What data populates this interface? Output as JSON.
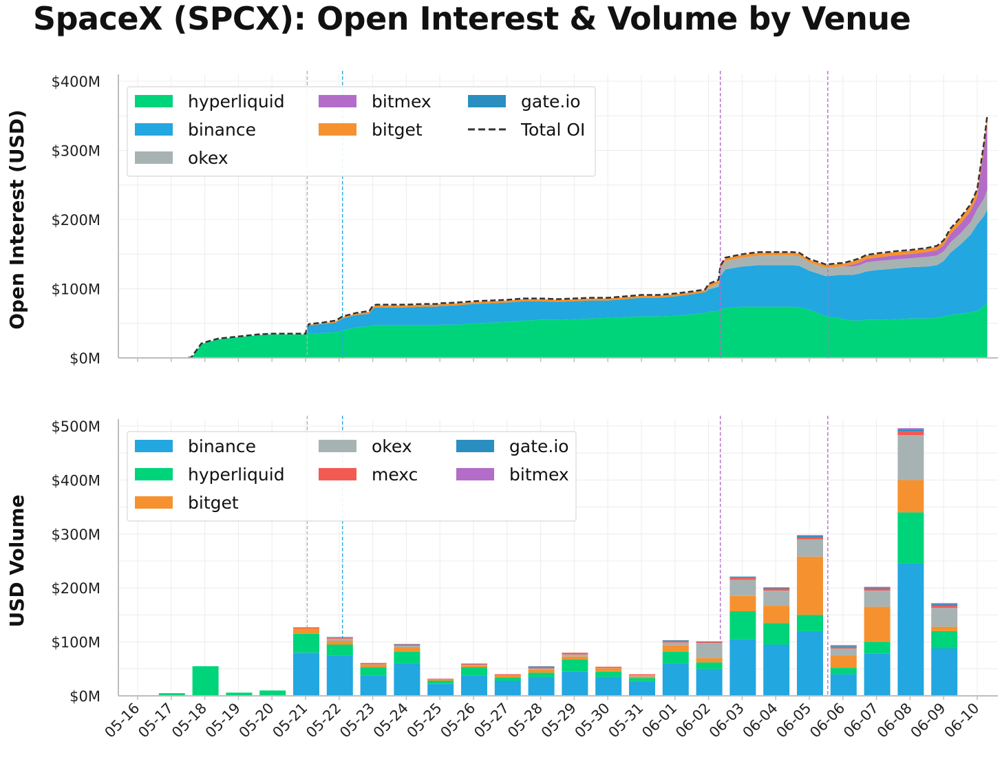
{
  "title": "SpaceX (SPCX): Open Interest & Volume by Venue",
  "colors": {
    "hyperliquid": "#00d47a",
    "binance": "#22a7e0",
    "okex": "#a7b3b3",
    "bitmex": "#b36cc8",
    "bitget": "#f5922f",
    "gate.io": "#2a8fc0",
    "mexc": "#f25a52",
    "total": "#333333"
  },
  "x_ticks": [
    "05-16",
    "05-17",
    "05-18",
    "05-19",
    "05-20",
    "05-21",
    "05-22",
    "05-23",
    "05-24",
    "05-25",
    "05-26",
    "05-27",
    "05-28",
    "05-29",
    "05-30",
    "05-31",
    "06-01",
    "06-02",
    "06-03",
    "06-04",
    "06-05",
    "06-06",
    "06-07",
    "06-08",
    "06-09",
    "06-10"
  ],
  "chart_data": [
    {
      "type": "area",
      "stacked": true,
      "ylabel": "Open Interest (USD)",
      "ylim": [
        0,
        400
      ],
      "y_unit": "$M",
      "y_ticks": [
        "$0M",
        "$100M",
        "$200M",
        "$300M",
        "$400M"
      ],
      "x_range": [
        "05-16",
        "06-10"
      ],
      "grid": true,
      "legend_position": "top-left",
      "vlines": [
        {
          "x": "05-21",
          "offset_days": 0.05,
          "color": "#a7b3b3"
        },
        {
          "x": "05-22",
          "offset_days": 0.1,
          "color": "#22a7e0"
        },
        {
          "x": "06-02",
          "offset_days": 0.35,
          "color": "#b36cc8"
        },
        {
          "x": "06-05",
          "offset_days": 0.55,
          "color": "#b36cc8"
        }
      ],
      "legend": [
        {
          "label": "hyperliquid",
          "key": "hyperliquid",
          "kind": "patch"
        },
        {
          "label": "binance",
          "key": "binance",
          "kind": "patch"
        },
        {
          "label": "okex",
          "key": "okex",
          "kind": "patch"
        },
        {
          "label": "bitmex",
          "key": "bitmex",
          "kind": "patch"
        },
        {
          "label": "bitget",
          "key": "bitget",
          "kind": "patch"
        },
        {
          "label": "gate.io",
          "key": "gate.io",
          "kind": "patch"
        },
        {
          "label": "Total OI",
          "key": "total",
          "kind": "dash"
        }
      ],
      "x": [
        1.6,
        1.9,
        2.1,
        2.4,
        2.8,
        3.2,
        3.6,
        4.0,
        4.5,
        5.0,
        5.05,
        5.1,
        5.5,
        5.9,
        6.0,
        6.1,
        6.5,
        6.9,
        7.0,
        7.1,
        7.5,
        8.0,
        8.5,
        8.9,
        9.0,
        9.5,
        10.0,
        10.5,
        11.0,
        11.5,
        12.0,
        12.5,
        13.0,
        13.5,
        14.0,
        14.5,
        15.0,
        15.5,
        16.0,
        16.5,
        16.9,
        17.0,
        17.3,
        17.35,
        17.5,
        18.0,
        18.5,
        19.0,
        19.5,
        19.7,
        20.0,
        20.5,
        20.9,
        21.0,
        21.3,
        21.5,
        21.7,
        22.0,
        22.5,
        23.0,
        23.5,
        23.8,
        24.0,
        24.2,
        24.5,
        24.8,
        25.0,
        25.2,
        25.3
      ],
      "series": [
        {
          "name": "hyperliquid",
          "key": "hyperliquid",
          "values": [
            0,
            20,
            23,
            27,
            29,
            31,
            33,
            34,
            34,
            34,
            35,
            35,
            36,
            37,
            38,
            40,
            44,
            46,
            47,
            47,
            47,
            47,
            47,
            47,
            48,
            48,
            50,
            51,
            52,
            54,
            55,
            55,
            56,
            57,
            58,
            59,
            60,
            60,
            61,
            63,
            65,
            67,
            68,
            70,
            72,
            74,
            74,
            74,
            74,
            73,
            70,
            60,
            58,
            56,
            54,
            54,
            55,
            55,
            56,
            57,
            57,
            58,
            60,
            62,
            64,
            66,
            68,
            75,
            80
          ]
        },
        {
          "name": "binance",
          "key": "binance",
          "values": [
            0,
            0,
            0,
            0,
            0,
            0,
            0,
            0,
            0,
            0,
            8,
            12,
            13,
            14,
            16,
            17,
            18,
            18,
            24,
            26,
            26,
            26,
            27,
            27,
            27,
            28,
            28,
            28,
            28,
            28,
            27,
            26,
            26,
            26,
            25,
            26,
            27,
            27,
            28,
            29,
            30,
            32,
            35,
            48,
            56,
            58,
            60,
            60,
            60,
            60,
            56,
            58,
            62,
            64,
            66,
            68,
            70,
            72,
            73,
            74,
            75,
            76,
            80,
            90,
            100,
            112,
            125,
            130,
            135
          ]
        },
        {
          "name": "okex",
          "key": "okex",
          "values": [
            0,
            0,
            0,
            0,
            0,
            0,
            0,
            0,
            0,
            0,
            0,
            0,
            0,
            0,
            0,
            0,
            0,
            0,
            0,
            0,
            0,
            0,
            0,
            0,
            0,
            0,
            0,
            0,
            0,
            0,
            0,
            0,
            0,
            0,
            0,
            0,
            0,
            0,
            0,
            0,
            0,
            3,
            5,
            10,
            12,
            13,
            14,
            14,
            14,
            14,
            12,
            12,
            12,
            12,
            12,
            12,
            13,
            13,
            13,
            13,
            14,
            14,
            14,
            15,
            16,
            18,
            22,
            25,
            28
          ]
        },
        {
          "name": "bitmex",
          "key": "bitmex",
          "values": [
            0,
            0,
            0,
            0,
            0,
            0,
            0,
            0,
            0,
            0,
            0,
            0,
            0,
            0,
            0,
            0,
            0,
            0,
            0,
            0,
            0,
            0,
            0,
            0,
            0,
            0,
            0,
            0,
            0,
            0,
            0,
            0,
            0,
            0,
            0,
            0,
            0,
            0,
            0,
            0,
            0,
            0,
            0,
            0,
            0,
            0,
            0,
            0,
            0,
            0,
            0,
            0,
            0,
            0,
            3,
            4,
            5,
            5,
            6,
            6,
            7,
            8,
            9,
            12,
            14,
            16,
            18,
            70,
            95
          ]
        },
        {
          "name": "bitget",
          "key": "bitget",
          "values": [
            0,
            0,
            0,
            0,
            0,
            0,
            0,
            0,
            0,
            0,
            1,
            1,
            1,
            2,
            2,
            2,
            2,
            3,
            3,
            3,
            3,
            3,
            3,
            3,
            3,
            3,
            3,
            3,
            3,
            3,
            3,
            3,
            3,
            3,
            3,
            3,
            3,
            3,
            3,
            3,
            3,
            4,
            4,
            4,
            4,
            4,
            4,
            4,
            4,
            4,
            4,
            4,
            4,
            4,
            5,
            5,
            5,
            5,
            5,
            5,
            5,
            5,
            6,
            7,
            8,
            9,
            10,
            10,
            12
          ]
        },
        {
          "name": "gate.io",
          "key": "gate.io",
          "values": [
            0,
            0,
            0,
            0,
            0,
            0,
            0,
            0,
            0,
            0,
            0,
            0,
            0,
            0,
            0,
            0,
            0,
            0,
            0,
            0,
            0,
            0,
            0,
            0,
            0,
            0,
            0,
            0,
            0,
            0,
            0,
            0,
            0,
            0,
            0,
            0,
            0,
            0,
            0,
            0,
            0,
            0,
            0,
            0,
            0,
            0,
            0,
            0,
            0,
            0,
            0,
            0,
            0,
            0,
            0,
            0,
            0,
            0,
            0,
            0,
            0,
            0,
            0,
            0,
            0,
            0,
            0,
            0,
            0
          ]
        }
      ]
    },
    {
      "type": "bar",
      "stacked": true,
      "ylabel": "USD Volume",
      "ylim": [
        0,
        500
      ],
      "y_unit": "$M",
      "y_ticks": [
        "$0M",
        "$100M",
        "$200M",
        "$300M",
        "$400M",
        "$500M"
      ],
      "grid": true,
      "legend_position": "top-left",
      "legend": [
        {
          "label": "binance",
          "key": "binance",
          "kind": "patch"
        },
        {
          "label": "hyperliquid",
          "key": "hyperliquid",
          "kind": "patch"
        },
        {
          "label": "bitget",
          "key": "bitget",
          "kind": "patch"
        },
        {
          "label": "okex",
          "key": "okex",
          "kind": "patch"
        },
        {
          "label": "mexc",
          "key": "mexc",
          "kind": "patch"
        },
        {
          "label": "gate.io",
          "key": "gate.io",
          "kind": "patch"
        },
        {
          "label": "bitmex",
          "key": "bitmex",
          "kind": "patch"
        }
      ],
      "categories": [
        "05-16",
        "05-17",
        "05-18",
        "05-19",
        "05-20",
        "05-21",
        "05-22",
        "05-23",
        "05-24",
        "05-25",
        "05-26",
        "05-27",
        "05-28",
        "05-29",
        "05-30",
        "05-31",
        "06-01",
        "06-02",
        "06-03",
        "06-04",
        "06-05",
        "06-06",
        "06-07",
        "06-08",
        "06-09"
      ],
      "series": [
        {
          "name": "binance",
          "key": "binance",
          "values": [
            0,
            0,
            0,
            0,
            0,
            80,
            75,
            38,
            60,
            22,
            38,
            28,
            35,
            45,
            35,
            27,
            60,
            50,
            105,
            95,
            120,
            40,
            78,
            245,
            88
          ]
        },
        {
          "name": "hyperliquid",
          "key": "hyperliquid",
          "values": [
            0,
            5,
            55,
            6,
            10,
            35,
            20,
            15,
            22,
            6,
            15,
            6,
            8,
            22,
            10,
            6,
            22,
            12,
            52,
            40,
            30,
            12,
            22,
            95,
            32
          ]
        },
        {
          "name": "bitget",
          "key": "bitget",
          "values": [
            0,
            0,
            0,
            0,
            0,
            10,
            7,
            5,
            8,
            2,
            3,
            3,
            6,
            6,
            6,
            3,
            12,
            8,
            28,
            32,
            108,
            22,
            65,
            60,
            8
          ]
        },
        {
          "name": "okex",
          "key": "okex",
          "values": [
            0,
            0,
            0,
            0,
            0,
            0,
            4,
            1,
            3,
            1,
            2,
            1,
            2,
            4,
            1,
            2,
            5,
            28,
            30,
            28,
            32,
            14,
            30,
            83,
            35
          ]
        },
        {
          "name": "mexc",
          "key": "mexc",
          "values": [
            0,
            0,
            0,
            0,
            0,
            2,
            2,
            2,
            2,
            1,
            2,
            2,
            3,
            3,
            2,
            2,
            3,
            2,
            4,
            4,
            4,
            3,
            4,
            7,
            4
          ]
        },
        {
          "name": "gate.io",
          "key": "gate.io",
          "values": [
            0,
            0,
            0,
            0,
            0,
            0,
            1,
            0,
            1,
            0,
            0,
            0,
            1,
            0,
            0,
            0,
            1,
            1,
            2,
            2,
            3,
            2,
            2,
            4,
            3
          ]
        },
        {
          "name": "bitmex",
          "key": "bitmex",
          "values": [
            0,
            0,
            0,
            0,
            0,
            0,
            0,
            0,
            0,
            0,
            0,
            0,
            0,
            0,
            0,
            0,
            0,
            0,
            0,
            0,
            1,
            1,
            1,
            2,
            2
          ]
        }
      ]
    }
  ]
}
